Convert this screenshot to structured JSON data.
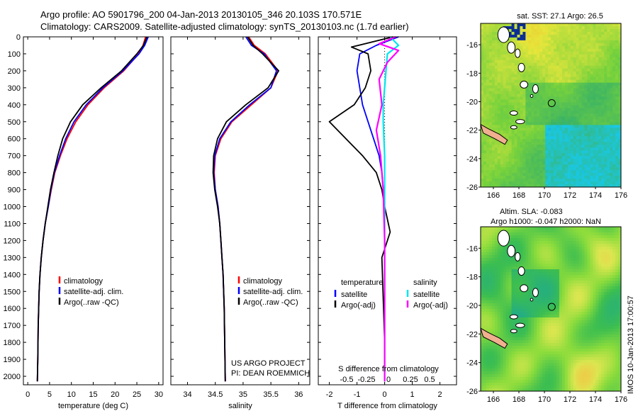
{
  "header": {
    "line1": "Argo profile: AO 5901796_200 04-Jan-2013 20130105_346 20.103S 170.571E",
    "line2": "Climatology: CARS2009. Satellite-adjusted climatology: synTS_20130103.nc (1.7d earlier)"
  },
  "credit": "IMOS 10-Jan-2013 17:00:57",
  "colors": {
    "climatology": "#ff0000",
    "satellite": "#0000ff",
    "argo": "#000000",
    "sat_salinity": "#00e5ee",
    "argo_salinity": "#ff00ff"
  },
  "chart_data": [
    {
      "type": "line",
      "name": "temperature-profile",
      "xlabel": "temperature (deg C)",
      "ylabel": "",
      "xlim": [
        -1,
        31
      ],
      "ylim": [
        0,
        2050
      ],
      "y_inverted": true,
      "xticks": [
        0,
        5,
        10,
        15,
        20,
        25,
        30
      ],
      "yticks": [
        0,
        100,
        200,
        300,
        400,
        500,
        600,
        700,
        800,
        900,
        1000,
        1100,
        1200,
        1300,
        1400,
        1500,
        1600,
        1700,
        1800,
        1900,
        2000
      ],
      "legend": [
        "climatology",
        "satellite-adj. clim.",
        "Argo(..raw -QC)"
      ],
      "legend_position": "center",
      "series": [
        {
          "name": "climatology",
          "color": "#ff0000",
          "x": [
            27.0,
            26.4,
            25.4,
            22.0,
            17.5,
            13.8,
            11.0,
            9.0,
            7.5,
            6.2,
            5.4,
            4.7,
            4.0,
            3.5,
            3.1,
            2.8,
            2.6,
            2.4,
            2.3,
            2.2
          ],
          "y": [
            0,
            50,
            100,
            200,
            300,
            400,
            500,
            600,
            700,
            800,
            900,
            1000,
            1100,
            1200,
            1300,
            1400,
            1500,
            1700,
            1900,
            2030
          ]
        },
        {
          "name": "satellite-adj. clim.",
          "color": "#0000ff",
          "x": [
            27.6,
            26.8,
            25.5,
            21.8,
            17.2,
            13.4,
            10.6,
            8.7,
            7.3,
            6.1,
            5.3,
            4.7,
            4.0,
            3.5,
            3.1,
            2.8,
            2.6,
            2.4,
            2.3,
            2.2
          ],
          "y": [
            0,
            50,
            100,
            200,
            300,
            400,
            500,
            600,
            700,
            800,
            900,
            1000,
            1100,
            1200,
            1300,
            1400,
            1500,
            1700,
            1900,
            2030
          ]
        },
        {
          "name": "Argo(..raw -QC)",
          "color": "#000000",
          "x": [
            27.3,
            26.5,
            25.0,
            21.5,
            16.8,
            12.6,
            9.8,
            8.0,
            6.9,
            6.0,
            5.2,
            4.6,
            4.0,
            3.5,
            3.1,
            2.8,
            2.6,
            2.4,
            2.3,
            2.2
          ],
          "y": [
            0,
            50,
            100,
            200,
            300,
            400,
            500,
            600,
            700,
            800,
            900,
            1000,
            1100,
            1200,
            1300,
            1400,
            1500,
            1700,
            1900,
            2030
          ]
        }
      ]
    },
    {
      "type": "line",
      "name": "salinity-profile",
      "xlabel": "salinity",
      "xlim": [
        33.7,
        36.2
      ],
      "ylim": [
        0,
        2050
      ],
      "y_inverted": true,
      "xticks": [
        34,
        34.5,
        35,
        35.5,
        36
      ],
      "legend": [
        "climatology",
        "satellite-adj. clim.",
        "Argo(..raw -QC)"
      ],
      "legend_position": "center-right",
      "annotation": [
        "US ARGO PROJECT",
        "PI: DEAN ROEMMICH"
      ],
      "series": [
        {
          "name": "climatology",
          "color": "#ff0000",
          "x": [
            35.1,
            35.2,
            35.4,
            35.63,
            35.5,
            35.15,
            34.8,
            34.6,
            34.5,
            34.48,
            34.5,
            34.55,
            34.58,
            34.6,
            34.62,
            34.64,
            34.66,
            34.67,
            34.68
          ],
          "y": [
            0,
            50,
            100,
            200,
            300,
            400,
            500,
            600,
            700,
            800,
            900,
            1000,
            1100,
            1200,
            1300,
            1400,
            1600,
            1800,
            2030
          ]
        },
        {
          "name": "satellite-adj. clim.",
          "color": "#0000ff",
          "x": [
            35.05,
            35.15,
            35.38,
            35.6,
            35.5,
            35.12,
            34.78,
            34.58,
            34.49,
            34.47,
            34.5,
            34.55,
            34.58,
            34.6,
            34.62,
            34.64,
            34.66,
            34.67,
            34.68
          ],
          "y": [
            0,
            50,
            100,
            200,
            300,
            400,
            500,
            600,
            700,
            800,
            900,
            1000,
            1100,
            1200,
            1300,
            1400,
            1600,
            1800,
            2030
          ]
        },
        {
          "name": "Argo(..raw -QC)",
          "color": "#000000",
          "x": [
            35.08,
            35.18,
            35.35,
            35.64,
            35.45,
            35.05,
            34.7,
            34.54,
            34.47,
            34.46,
            34.49,
            34.54,
            34.58,
            34.6,
            34.62,
            34.64,
            34.66,
            34.67,
            34.68
          ],
          "y": [
            0,
            50,
            100,
            200,
            300,
            400,
            500,
            600,
            700,
            800,
            900,
            1000,
            1100,
            1200,
            1300,
            1400,
            1600,
            1800,
            2030
          ]
        }
      ]
    },
    {
      "type": "line",
      "name": "difference-profile",
      "xlabel": "T difference from climatology",
      "xlabel_top": "S difference from climatology",
      "xlim": [
        -2.4,
        2.6
      ],
      "ylim": [
        0,
        2050
      ],
      "y_inverted": true,
      "xticks": [
        -2,
        -1,
        0,
        1,
        2
      ],
      "s_ticks": [
        "-0.5",
        "-0.25",
        "0",
        "0.25",
        "0.5"
      ],
      "legend_temperature": [
        "temperature",
        "satellite",
        "Argo(-adj)"
      ],
      "legend_salinity": [
        "salinity",
        "satellite",
        "Argo(-adj)"
      ],
      "series": [
        {
          "name": "temperature satellite",
          "color": "#0000ff",
          "x": [
            0.5,
            -0.3,
            -0.9,
            -1.0,
            -0.9,
            -0.8,
            -0.6,
            -0.4,
            -0.2,
            -0.1,
            -0.05,
            0.0,
            0.0,
            0.0,
            0.0,
            0.0
          ],
          "y": [
            0,
            50,
            100,
            200,
            300,
            400,
            500,
            600,
            700,
            800,
            900,
            1000,
            1200,
            1500,
            1800,
            2030
          ]
        },
        {
          "name": "temperature Argo(-adj)",
          "color": "#000000",
          "x": [
            0.3,
            -1.2,
            -0.6,
            -0.5,
            -0.7,
            -1.1,
            -2.0,
            -1.4,
            -0.8,
            -0.3,
            -0.1,
            0.0,
            0.2,
            -0.1,
            0.0,
            0.0
          ],
          "y": [
            0,
            60,
            100,
            200,
            300,
            400,
            500,
            600,
            700,
            800,
            900,
            1000,
            1150,
            1300,
            1800,
            2030
          ]
        },
        {
          "name": "salinity satellite",
          "color": "#00e5ee",
          "x": [
            0.2,
            0.5,
            0.1,
            0.05,
            0.0,
            -0.05,
            -0.05,
            0.0,
            0.0,
            0.0,
            0.0,
            0.0
          ],
          "y": [
            0,
            50,
            100,
            200,
            300,
            400,
            500,
            700,
            900,
            1200,
            1600,
            2030
          ]
        },
        {
          "name": "salinity Argo(-adj)",
          "color": "#ff00ff",
          "x": [
            0.4,
            -0.2,
            0.5,
            0.1,
            -0.2,
            -0.1,
            -0.3,
            -0.15,
            -0.05,
            0.0,
            0.0,
            0.0
          ],
          "y": [
            0,
            40,
            80,
            150,
            250,
            400,
            550,
            700,
            900,
            1200,
            1600,
            2030
          ]
        }
      ]
    },
    {
      "type": "heatmap",
      "name": "sst-map",
      "title": "sat. SST: 27.1 Argo: 26.5",
      "xlim": [
        165,
        176
      ],
      "ylim": [
        -26,
        -14.5
      ],
      "xticks": [
        166,
        168,
        170,
        172,
        174,
        176
      ],
      "yticks": [
        -16,
        -18,
        -20,
        -22,
        -24,
        -26
      ],
      "marker": [
        170.571,
        -20.103
      ]
    },
    {
      "type": "heatmap",
      "name": "sla-map",
      "title": "Altim. SLA: -0.083",
      "subtitle": "Argo h1000: -0.047 h2000: NaN",
      "xlim": [
        165,
        176
      ],
      "ylim": [
        -26,
        -14.5
      ],
      "xticks": [
        166,
        168,
        170,
        172,
        174,
        176
      ],
      "yticks": [
        -16,
        -18,
        -20,
        -22,
        -24,
        -26
      ],
      "marker": [
        170.571,
        -20.103
      ]
    }
  ]
}
